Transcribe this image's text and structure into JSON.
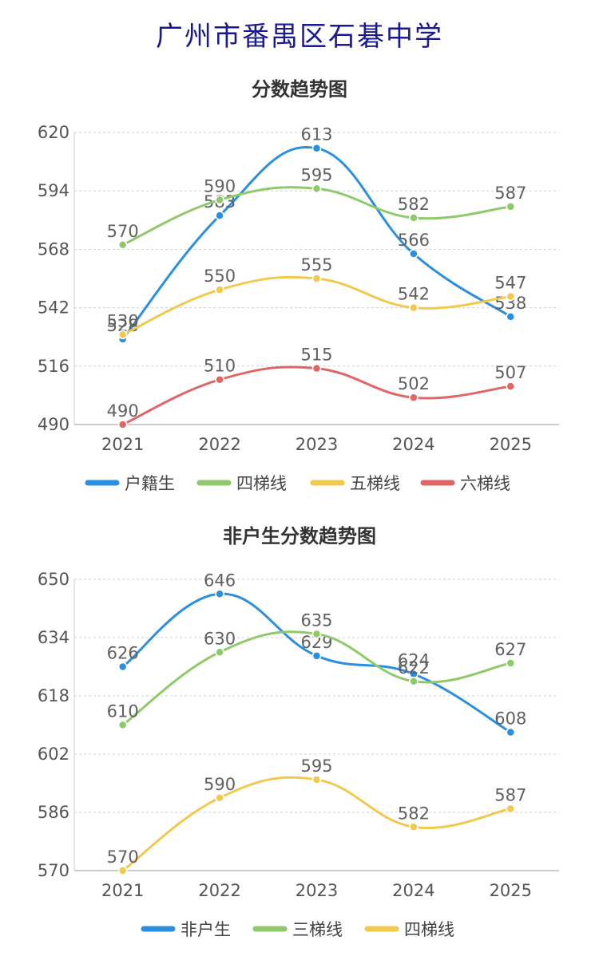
{
  "page_title": "广州市番禺区石碁中学",
  "chart_data": [
    {
      "type": "line",
      "title": "分数趋势图",
      "categories": [
        "2021",
        "2022",
        "2023",
        "2024",
        "2025"
      ],
      "ylim": [
        490,
        620
      ],
      "yticks": [
        490,
        516,
        542,
        568,
        594,
        620
      ],
      "grid": true,
      "legend_position": "bottom",
      "series": [
        {
          "name": "户籍生",
          "color": "#2b8fe0",
          "values": [
            528,
            583,
            613,
            566,
            538
          ]
        },
        {
          "name": "四梯线",
          "color": "#8ec96a",
          "values": [
            570,
            590,
            595,
            582,
            587
          ]
        },
        {
          "name": "五梯线",
          "color": "#f0c94e",
          "values": [
            530,
            550,
            555,
            542,
            547
          ]
        },
        {
          "name": "六梯线",
          "color": "#e06666",
          "values": [
            490,
            510,
            515,
            502,
            507
          ]
        }
      ]
    },
    {
      "type": "line",
      "title": "非户生分数趋势图",
      "categories": [
        "2021",
        "2022",
        "2023",
        "2024",
        "2025"
      ],
      "ylim": [
        570,
        650
      ],
      "yticks": [
        570,
        586,
        602,
        618,
        634,
        650
      ],
      "grid": true,
      "legend_position": "bottom",
      "series": [
        {
          "name": "非户生",
          "color": "#2b8fe0",
          "values": [
            626,
            646,
            629,
            624,
            608
          ]
        },
        {
          "name": "三梯线",
          "color": "#8ec96a",
          "values": [
            610,
            630,
            635,
            622,
            627
          ]
        },
        {
          "name": "四梯线",
          "color": "#f0c94e",
          "values": [
            570,
            590,
            595,
            582,
            587
          ]
        }
      ]
    }
  ]
}
